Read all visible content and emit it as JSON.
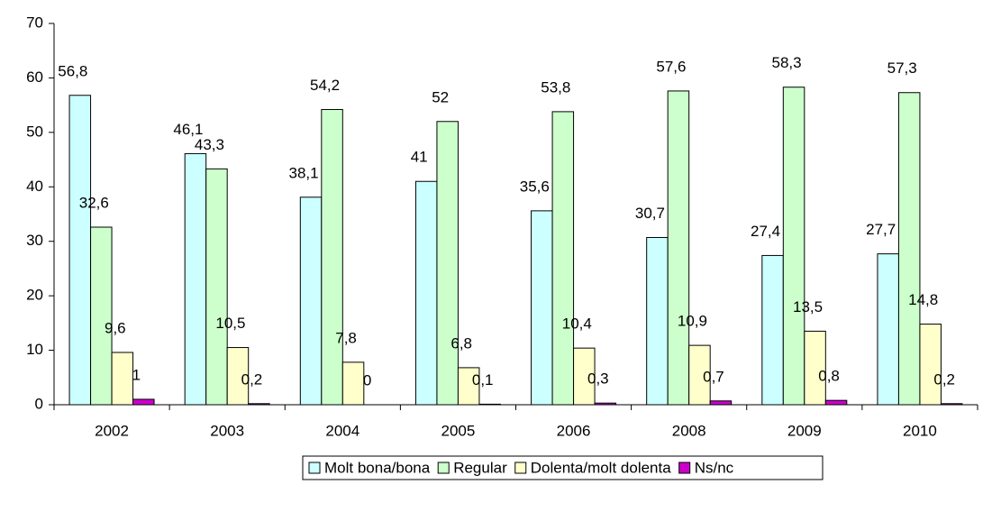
{
  "chart_data": {
    "type": "bar",
    "categories": [
      "2002",
      "2003",
      "2004",
      "2005",
      "2006",
      "2008",
      "2009",
      "2010"
    ],
    "series": [
      {
        "name": "Molt bona/bona",
        "color": "#ccffff",
        "values": [
          56.8,
          46.1,
          38.1,
          41,
          35.6,
          30.7,
          27.4,
          27.7
        ],
        "value_labels": [
          "56,8",
          "46,1",
          "38,1",
          "41",
          "35,6",
          "30,7",
          "27,4",
          "27,7"
        ]
      },
      {
        "name": "Regular",
        "color": "#ccffcc",
        "values": [
          32.6,
          43.3,
          54.2,
          52,
          53.8,
          57.6,
          58.3,
          57.3
        ],
        "value_labels": [
          "32,6",
          "43,3",
          "54,2",
          "52",
          "53,8",
          "57,6",
          "58,3",
          "57,3"
        ]
      },
      {
        "name": "Dolenta/molt dolenta",
        "color": "#ffffcc",
        "values": [
          9.6,
          10.5,
          7.8,
          6.8,
          10.4,
          10.9,
          13.5,
          14.8
        ],
        "value_labels": [
          "9,6",
          "10,5",
          "7,8",
          "6,8",
          "10,4",
          "10,9",
          "13,5",
          "14,8"
        ]
      },
      {
        "name": "Ns/nc",
        "color": "#cc00cc",
        "values": [
          1,
          0.2,
          0,
          0.1,
          0.3,
          0.7,
          0.8,
          0.2
        ],
        "value_labels": [
          "1",
          "0,2",
          "0",
          "0,1",
          "0,3",
          "0,7",
          "0,8",
          "0,2"
        ]
      }
    ],
    "ylim": [
      0,
      70
    ],
    "yticks": [
      0,
      10,
      20,
      30,
      40,
      50,
      60,
      70
    ],
    "legend": "bottom"
  }
}
